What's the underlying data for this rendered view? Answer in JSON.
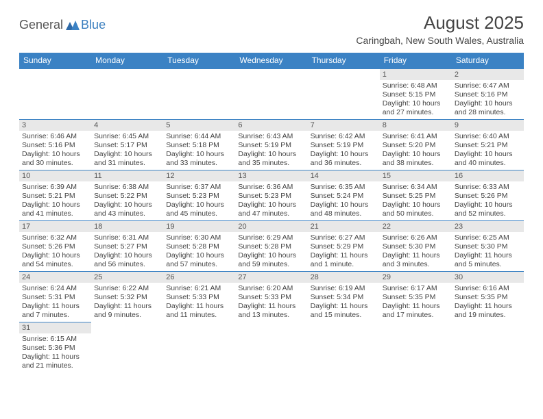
{
  "logo": {
    "part1": "General",
    "part2": "Blue"
  },
  "title": "August 2025",
  "location": "Caringbah, New South Wales, Australia",
  "colors": {
    "header_bg": "#3b82c4",
    "header_fg": "#ffffff",
    "daynum_bg": "#e8e8e8",
    "border": "#3b82c4",
    "text": "#444444",
    "logo_gray": "#555555",
    "logo_blue": "#3b7fbf"
  },
  "days_of_week": [
    "Sunday",
    "Monday",
    "Tuesday",
    "Wednesday",
    "Thursday",
    "Friday",
    "Saturday"
  ],
  "weeks": [
    [
      null,
      null,
      null,
      null,
      null,
      {
        "n": "1",
        "sr": "6:48 AM",
        "ss": "5:15 PM",
        "dl": "10 hours and 27 minutes."
      },
      {
        "n": "2",
        "sr": "6:47 AM",
        "ss": "5:16 PM",
        "dl": "10 hours and 28 minutes."
      }
    ],
    [
      {
        "n": "3",
        "sr": "6:46 AM",
        "ss": "5:16 PM",
        "dl": "10 hours and 30 minutes."
      },
      {
        "n": "4",
        "sr": "6:45 AM",
        "ss": "5:17 PM",
        "dl": "10 hours and 31 minutes."
      },
      {
        "n": "5",
        "sr": "6:44 AM",
        "ss": "5:18 PM",
        "dl": "10 hours and 33 minutes."
      },
      {
        "n": "6",
        "sr": "6:43 AM",
        "ss": "5:19 PM",
        "dl": "10 hours and 35 minutes."
      },
      {
        "n": "7",
        "sr": "6:42 AM",
        "ss": "5:19 PM",
        "dl": "10 hours and 36 minutes."
      },
      {
        "n": "8",
        "sr": "6:41 AM",
        "ss": "5:20 PM",
        "dl": "10 hours and 38 minutes."
      },
      {
        "n": "9",
        "sr": "6:40 AM",
        "ss": "5:21 PM",
        "dl": "10 hours and 40 minutes."
      }
    ],
    [
      {
        "n": "10",
        "sr": "6:39 AM",
        "ss": "5:21 PM",
        "dl": "10 hours and 41 minutes."
      },
      {
        "n": "11",
        "sr": "6:38 AM",
        "ss": "5:22 PM",
        "dl": "10 hours and 43 minutes."
      },
      {
        "n": "12",
        "sr": "6:37 AM",
        "ss": "5:23 PM",
        "dl": "10 hours and 45 minutes."
      },
      {
        "n": "13",
        "sr": "6:36 AM",
        "ss": "5:23 PM",
        "dl": "10 hours and 47 minutes."
      },
      {
        "n": "14",
        "sr": "6:35 AM",
        "ss": "5:24 PM",
        "dl": "10 hours and 48 minutes."
      },
      {
        "n": "15",
        "sr": "6:34 AM",
        "ss": "5:25 PM",
        "dl": "10 hours and 50 minutes."
      },
      {
        "n": "16",
        "sr": "6:33 AM",
        "ss": "5:26 PM",
        "dl": "10 hours and 52 minutes."
      }
    ],
    [
      {
        "n": "17",
        "sr": "6:32 AM",
        "ss": "5:26 PM",
        "dl": "10 hours and 54 minutes."
      },
      {
        "n": "18",
        "sr": "6:31 AM",
        "ss": "5:27 PM",
        "dl": "10 hours and 56 minutes."
      },
      {
        "n": "19",
        "sr": "6:30 AM",
        "ss": "5:28 PM",
        "dl": "10 hours and 57 minutes."
      },
      {
        "n": "20",
        "sr": "6:29 AM",
        "ss": "5:28 PM",
        "dl": "10 hours and 59 minutes."
      },
      {
        "n": "21",
        "sr": "6:27 AM",
        "ss": "5:29 PM",
        "dl": "11 hours and 1 minute."
      },
      {
        "n": "22",
        "sr": "6:26 AM",
        "ss": "5:30 PM",
        "dl": "11 hours and 3 minutes."
      },
      {
        "n": "23",
        "sr": "6:25 AM",
        "ss": "5:30 PM",
        "dl": "11 hours and 5 minutes."
      }
    ],
    [
      {
        "n": "24",
        "sr": "6:24 AM",
        "ss": "5:31 PM",
        "dl": "11 hours and 7 minutes."
      },
      {
        "n": "25",
        "sr": "6:22 AM",
        "ss": "5:32 PM",
        "dl": "11 hours and 9 minutes."
      },
      {
        "n": "26",
        "sr": "6:21 AM",
        "ss": "5:33 PM",
        "dl": "11 hours and 11 minutes."
      },
      {
        "n": "27",
        "sr": "6:20 AM",
        "ss": "5:33 PM",
        "dl": "11 hours and 13 minutes."
      },
      {
        "n": "28",
        "sr": "6:19 AM",
        "ss": "5:34 PM",
        "dl": "11 hours and 15 minutes."
      },
      {
        "n": "29",
        "sr": "6:17 AM",
        "ss": "5:35 PM",
        "dl": "11 hours and 17 minutes."
      },
      {
        "n": "30",
        "sr": "6:16 AM",
        "ss": "5:35 PM",
        "dl": "11 hours and 19 minutes."
      }
    ],
    [
      {
        "n": "31",
        "sr": "6:15 AM",
        "ss": "5:36 PM",
        "dl": "11 hours and 21 minutes."
      },
      null,
      null,
      null,
      null,
      null,
      null
    ]
  ],
  "labels": {
    "sunrise": "Sunrise: ",
    "sunset": "Sunset: ",
    "daylight": "Daylight: "
  }
}
